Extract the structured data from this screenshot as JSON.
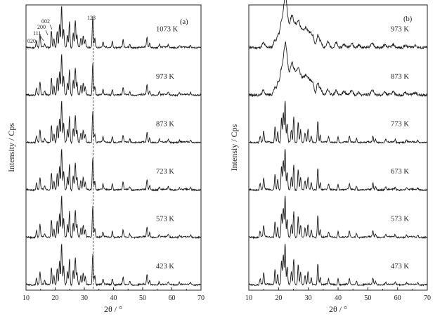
{
  "chart_data": [
    {
      "type": "line",
      "panel_label": "(a)",
      "ylabel": "Intensity / Cps",
      "xlabel": "2θ / °",
      "xlim": [
        10,
        70
      ],
      "xticks": [
        "10",
        "20",
        "30",
        "40",
        "50",
        "60",
        "70"
      ],
      "series": [
        {
          "name": "1073 K"
        },
        {
          "name": "973 K"
        },
        {
          "name": "873 K"
        },
        {
          "name": "723 K"
        },
        {
          "name": "573 K"
        },
        {
          "name": "423 K"
        }
      ],
      "peaks": [
        {
          "x": 13.6,
          "h": 0.16
        },
        {
          "x": 14.8,
          "h": 0.3
        },
        {
          "x": 16.4,
          "h": 0.08
        },
        {
          "x": 18.7,
          "h": 0.42
        },
        {
          "x": 19.6,
          "h": 0.22
        },
        {
          "x": 20.7,
          "h": 0.4
        },
        {
          "x": 21.5,
          "h": 0.55
        },
        {
          "x": 22.2,
          "h": 1.0
        },
        {
          "x": 22.9,
          "h": 0.45
        },
        {
          "x": 24.2,
          "h": 0.3
        },
        {
          "x": 24.9,
          "h": 0.62
        },
        {
          "x": 26.2,
          "h": 0.35
        },
        {
          "x": 26.9,
          "h": 0.66
        },
        {
          "x": 27.5,
          "h": 0.3
        },
        {
          "x": 28.8,
          "h": 0.22
        },
        {
          "x": 29.6,
          "h": 0.28
        },
        {
          "x": 30.3,
          "h": 0.18
        },
        {
          "x": 32.9,
          "h": 0.76
        },
        {
          "x": 33.6,
          "h": 0.22
        },
        {
          "x": 36.4,
          "h": 0.12
        },
        {
          "x": 39.6,
          "h": 0.15
        },
        {
          "x": 43.3,
          "h": 0.17
        },
        {
          "x": 45.6,
          "h": 0.08
        },
        {
          "x": 51.5,
          "h": 0.24
        },
        {
          "x": 52.4,
          "h": 0.1
        },
        {
          "x": 55.7,
          "h": 0.07
        },
        {
          "x": 58.8,
          "h": 0.06
        },
        {
          "x": 62.6,
          "h": 0.05
        },
        {
          "x": 66.4,
          "h": 0.05
        }
      ],
      "annotations": {
        "hkl": [
          "020",
          "111",
          "200",
          "002",
          "123"
        ],
        "reference_line_x": 33.0
      }
    },
    {
      "type": "line",
      "panel_label": "(b)",
      "ylabel": "Intensiy / Cps",
      "xlabel": "2θ / °",
      "xlim": [
        10,
        70
      ],
      "xticks": [
        "10",
        "20",
        "30",
        "40",
        "50",
        "60",
        "70"
      ],
      "series": [
        {
          "name": "973 K",
          "style": "broad"
        },
        {
          "name": "873 K",
          "style": "broad"
        },
        {
          "name": "773 K",
          "style": "sharp"
        },
        {
          "name": "673 K",
          "style": "sharp"
        },
        {
          "name": "573 K",
          "style": "sharp"
        },
        {
          "name": "473 K",
          "style": "sharp"
        }
      ],
      "peaks_sharp": [
        {
          "x": 13.8,
          "h": 0.14
        },
        {
          "x": 15.0,
          "h": 0.28
        },
        {
          "x": 18.8,
          "h": 0.38
        },
        {
          "x": 19.7,
          "h": 0.26
        },
        {
          "x": 21.0,
          "h": 0.58
        },
        {
          "x": 21.6,
          "h": 0.7
        },
        {
          "x": 22.2,
          "h": 1.0
        },
        {
          "x": 22.9,
          "h": 0.42
        },
        {
          "x": 24.3,
          "h": 0.3
        },
        {
          "x": 25.1,
          "h": 0.62
        },
        {
          "x": 26.6,
          "h": 0.5
        },
        {
          "x": 27.4,
          "h": 0.3
        },
        {
          "x": 28.9,
          "h": 0.22
        },
        {
          "x": 29.9,
          "h": 0.3
        },
        {
          "x": 31.0,
          "h": 0.16
        },
        {
          "x": 33.2,
          "h": 0.52
        },
        {
          "x": 34.0,
          "h": 0.18
        },
        {
          "x": 36.8,
          "h": 0.12
        },
        {
          "x": 40.0,
          "h": 0.14
        },
        {
          "x": 43.8,
          "h": 0.14
        },
        {
          "x": 46.2,
          "h": 0.09
        },
        {
          "x": 51.7,
          "h": 0.16
        },
        {
          "x": 52.6,
          "h": 0.08
        },
        {
          "x": 56.0,
          "h": 0.07
        },
        {
          "x": 59.2,
          "h": 0.06
        },
        {
          "x": 63.0,
          "h": 0.05
        },
        {
          "x": 66.8,
          "h": 0.05
        }
      ],
      "peaks_broad": [
        {
          "x": 14.9,
          "h": 0.1
        },
        {
          "x": 18.7,
          "h": 0.18
        },
        {
          "x": 19.8,
          "h": 0.3
        },
        {
          "x": 20.8,
          "h": 0.5
        },
        {
          "x": 21.6,
          "h": 0.62
        },
        {
          "x": 22.3,
          "h": 1.0
        },
        {
          "x": 23.0,
          "h": 0.58
        },
        {
          "x": 23.9,
          "h": 0.45
        },
        {
          "x": 24.6,
          "h": 0.62
        },
        {
          "x": 25.4,
          "h": 0.45
        },
        {
          "x": 26.1,
          "h": 0.38
        },
        {
          "x": 26.8,
          "h": 0.52
        },
        {
          "x": 27.6,
          "h": 0.36
        },
        {
          "x": 28.4,
          "h": 0.32
        },
        {
          "x": 29.2,
          "h": 0.4
        },
        {
          "x": 30.0,
          "h": 0.3
        },
        {
          "x": 30.8,
          "h": 0.28
        },
        {
          "x": 31.6,
          "h": 0.25
        },
        {
          "x": 33.2,
          "h": 0.3
        },
        {
          "x": 34.2,
          "h": 0.14
        },
        {
          "x": 36.6,
          "h": 0.12
        },
        {
          "x": 39.4,
          "h": 0.12
        },
        {
          "x": 42.0,
          "h": 0.08
        },
        {
          "x": 44.6,
          "h": 0.1
        },
        {
          "x": 47.0,
          "h": 0.07
        },
        {
          "x": 51.6,
          "h": 0.1
        },
        {
          "x": 55.6,
          "h": 0.06
        },
        {
          "x": 58.6,
          "h": 0.06
        },
        {
          "x": 62.6,
          "h": 0.05
        },
        {
          "x": 66.0,
          "h": 0.05
        }
      ]
    }
  ]
}
